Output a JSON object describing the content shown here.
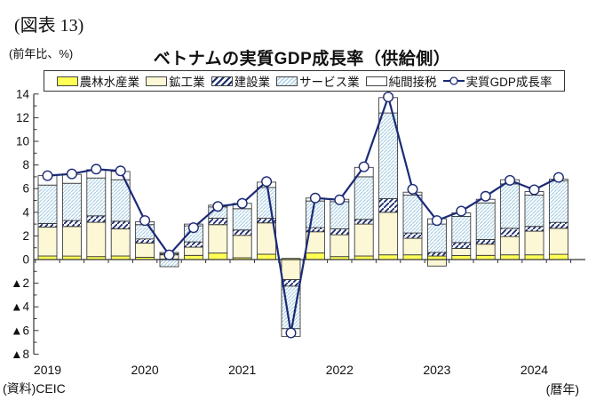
{
  "figure_label": "(図表 13)",
  "unit_label": "(前年比、%)",
  "title": "ベトナムの実質GDP成長率（供給側）",
  "source": "(資料)CEIC",
  "xaxis_note": "(暦年)",
  "chart_data": {
    "type": "bar",
    "subtype": "stacked-bar-with-line",
    "categories": [
      "2019Q1",
      "2019Q2",
      "2019Q3",
      "2019Q4",
      "2020Q1",
      "2020Q2",
      "2020Q3",
      "2020Q4",
      "2021Q1",
      "2021Q2",
      "2021Q3",
      "2021Q4",
      "2022Q1",
      "2022Q2",
      "2022Q3",
      "2022Q4",
      "2023Q1",
      "2023Q2",
      "2023Q3",
      "2023Q4",
      "2024Q1",
      "2024Q2"
    ],
    "series": [
      {
        "name": "農林水産業",
        "values": [
          0.3,
          0.3,
          0.25,
          0.3,
          0.2,
          0.05,
          0.35,
          0.55,
          0.15,
          0.45,
          0.1,
          0.55,
          0.25,
          0.3,
          0.4,
          0.4,
          0.3,
          0.35,
          0.35,
          0.4,
          0.4,
          0.45
        ]
      },
      {
        "name": "鉱工業",
        "values": [
          2.45,
          2.5,
          2.9,
          2.3,
          1.2,
          0.35,
          0.7,
          2.4,
          1.9,
          2.65,
          -1.7,
          1.8,
          1.85,
          2.7,
          3.6,
          1.4,
          -0.55,
          0.6,
          0.95,
          1.55,
          2.0,
          2.2
        ]
      },
      {
        "name": "建設業",
        "values": [
          0.3,
          0.5,
          0.55,
          0.65,
          0.35,
          0.1,
          0.45,
          0.55,
          0.45,
          0.4,
          -0.55,
          0.35,
          0.5,
          0.4,
          1.15,
          0.45,
          0.3,
          0.5,
          0.4,
          0.7,
          0.4,
          0.5
        ]
      },
      {
        "name": "サービス業",
        "values": [
          3.25,
          3.15,
          3.2,
          3.5,
          1.2,
          -0.6,
          1.35,
          0.95,
          1.8,
          2.6,
          -3.6,
          2.25,
          2.3,
          3.6,
          7.25,
          3.2,
          2.4,
          2.2,
          3.1,
          3.75,
          2.65,
          3.5
        ]
      },
      {
        "name": "純間接税",
        "values": [
          0.8,
          0.75,
          0.7,
          0.7,
          0.25,
          0.1,
          0.15,
          0.15,
          0.45,
          0.45,
          -0.65,
          0.25,
          0.2,
          0.8,
          1.3,
          0.25,
          0.45,
          0.3,
          0.3,
          0.35,
          0.3,
          0.15
        ]
      }
    ],
    "line_series": {
      "name": "実質GDP成長率",
      "values": [
        7.1,
        7.25,
        7.65,
        7.5,
        3.3,
        0.4,
        2.7,
        4.5,
        4.75,
        6.6,
        -6.2,
        5.2,
        5.05,
        7.85,
        13.75,
        5.95,
        3.3,
        4.1,
        5.35,
        6.7,
        5.9,
        6.95
      ]
    },
    "ylim": [
      -8,
      14
    ],
    "ytick_step": 2,
    "negative_prefix": "▲",
    "year_labels": [
      "2019",
      "2020",
      "2021",
      "2022",
      "2023",
      "2024"
    ],
    "legend_position": "top",
    "grid": false,
    "colors": {
      "agriculture": "#ffff55",
      "industry": "#fcf7d4",
      "construction_stripe": "#1a2a6e",
      "services_stripe": "#a9cfe4",
      "services_bg": "#ffffff",
      "taxes": "#ffffff",
      "bar_border": "#333333",
      "line": "#1b2a75",
      "axis": "#333333"
    }
  }
}
